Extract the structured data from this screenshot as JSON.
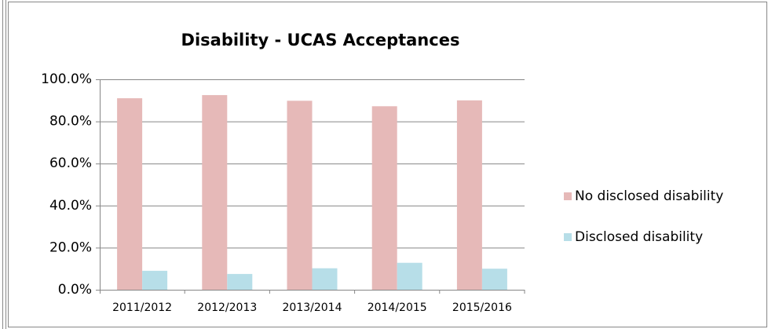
{
  "chart_data": {
    "type": "bar",
    "title": "Disability - UCAS Acceptances",
    "categories": [
      "2011/2012",
      "2012/2013",
      "2013/2014",
      "2014/2015",
      "2015/2016"
    ],
    "series": [
      {
        "name": "No disclosed disability",
        "color": "#e6b9b8",
        "values": [
          91.0,
          92.5,
          89.8,
          87.2,
          90.0
        ]
      },
      {
        "name": "Disclosed disability",
        "color": "#b7dee8",
        "values": [
          9.0,
          7.5,
          10.2,
          12.8,
          10.0
        ]
      }
    ],
    "ylim": [
      0,
      100
    ],
    "yticks": [
      {
        "value": 0,
        "label": "0.0%"
      },
      {
        "value": 20,
        "label": "20.0%"
      },
      {
        "value": 40,
        "label": "40.0%"
      },
      {
        "value": 60,
        "label": "60.0%"
      },
      {
        "value": 80,
        "label": "80.0%"
      },
      {
        "value": 100,
        "label": "100.0%"
      }
    ],
    "grid": true,
    "legend": "right"
  }
}
